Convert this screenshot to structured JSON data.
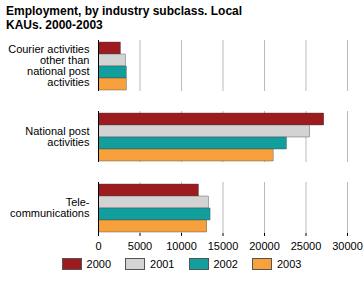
{
  "chart_data": {
    "type": "bar",
    "orientation": "horizontal",
    "title": "Employment, by industry subclass. Local KAUs. 2000-2003",
    "categories": [
      "Courier activities\nother than\nnational post\nactivities",
      "National post\nactivities",
      "Tele-\ncommunications"
    ],
    "series": [
      {
        "name": "2000",
        "color": "#9b1b1e",
        "values": [
          2700,
          27200,
          12100
        ]
      },
      {
        "name": "2001",
        "color": "#d3d3d3",
        "values": [
          3300,
          25500,
          13300
        ]
      },
      {
        "name": "2002",
        "color": "#139e9e",
        "values": [
          3400,
          22700,
          13500
        ]
      },
      {
        "name": "2003",
        "color": "#f6a13c",
        "values": [
          3400,
          21100,
          13100
        ]
      }
    ],
    "xlim": [
      0,
      30000
    ],
    "xticks": [
      0,
      5000,
      10000,
      15000,
      20000,
      25000,
      30000
    ],
    "grid": true,
    "legend": "bottom"
  }
}
